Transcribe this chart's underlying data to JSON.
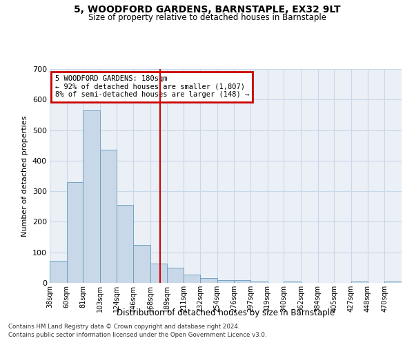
{
  "title": "5, WOODFORD GARDENS, BARNSTAPLE, EX32 9LT",
  "subtitle": "Size of property relative to detached houses in Barnstaple",
  "xlabel": "Distribution of detached houses by size in Barnstaple",
  "ylabel": "Number of detached properties",
  "bins": [
    "38sqm",
    "60sqm",
    "81sqm",
    "103sqm",
    "124sqm",
    "146sqm",
    "168sqm",
    "189sqm",
    "211sqm",
    "232sqm",
    "254sqm",
    "276sqm",
    "297sqm",
    "319sqm",
    "340sqm",
    "362sqm",
    "384sqm",
    "405sqm",
    "427sqm",
    "448sqm",
    "470sqm"
  ],
  "bin_edges": [
    38,
    60,
    81,
    103,
    124,
    146,
    168,
    189,
    211,
    232,
    254,
    276,
    297,
    319,
    340,
    362,
    384,
    405,
    427,
    448,
    470
  ],
  "counts": [
    72,
    330,
    565,
    435,
    255,
    125,
    63,
    50,
    28,
    15,
    10,
    10,
    5,
    0,
    5,
    0,
    0,
    0,
    5,
    0,
    5
  ],
  "bar_color": "#c8d8e8",
  "bar_edge_color": "#6699bb",
  "vline_x": 180,
  "vline_color": "#cc0000",
  "annotation_line1": "5 WOODFORD GARDENS: 180sqm",
  "annotation_line2": "← 92% of detached houses are smaller (1,807)",
  "annotation_line3": "8% of semi-detached houses are larger (148) →",
  "annotation_box_color": "#cc0000",
  "ylim": [
    0,
    700
  ],
  "yticks": [
    0,
    100,
    200,
    300,
    400,
    500,
    600,
    700
  ],
  "grid_color": "#c8d8e8",
  "bg_color": "#eaf0f6",
  "footnote1": "Contains HM Land Registry data © Crown copyright and database right 2024.",
  "footnote2": "Contains public sector information licensed under the Open Government Licence v3.0."
}
